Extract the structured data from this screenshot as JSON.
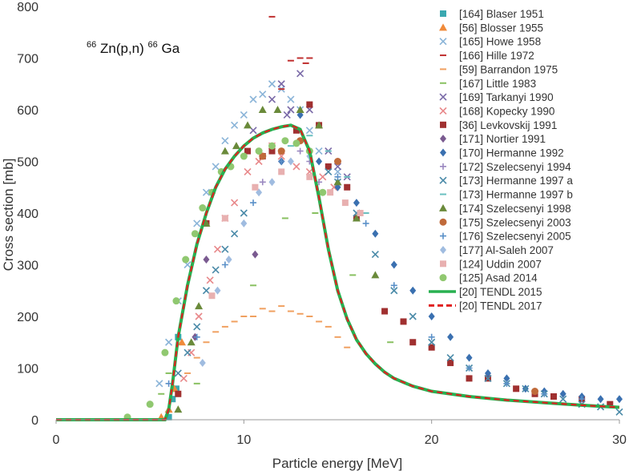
{
  "chart_data": {
    "type": "scatter",
    "title": "",
    "annotation": {
      "prefix_mass": "66",
      "target": "Zn(p,n)",
      "product_mass": "66",
      "product": "Ga"
    },
    "xlabel": "Particle energy [MeV]",
    "ylabel": "Cross section [mb]",
    "xlim": [
      0,
      30
    ],
    "ylim": [
      0,
      800
    ],
    "xticks": [
      0,
      10,
      20,
      30
    ],
    "yticks": [
      0,
      100,
      200,
      300,
      400,
      500,
      600,
      700,
      800
    ],
    "grid": false,
    "legend_position": "top-right",
    "series": [
      {
        "name": "[164] Blaser 1951",
        "marker": "square",
        "color": "#3aa8b0",
        "x": [
          6.0,
          6.2,
          6.5,
          6.4
        ],
        "y": [
          5,
          40,
          160,
          60
        ]
      },
      {
        "name": "[56] Blosser 1955",
        "marker": "triangle",
        "color": "#f08a3a",
        "x": [
          5.6,
          6.0,
          6.3,
          6.7
        ],
        "y": [
          5,
          20,
          60,
          150
        ]
      },
      {
        "name": "[165] Howe 1958",
        "marker": "x",
        "color": "#8ab4d8",
        "x": [
          5.5,
          6.0,
          6.5,
          7.0,
          7.5,
          8.0,
          8.5,
          9.0,
          9.5,
          10.0,
          10.5,
          11.0,
          11.5,
          12.0,
          12.5,
          13.0,
          13.5,
          14.0,
          15.0
        ],
        "y": [
          70,
          150,
          230,
          300,
          380,
          440,
          490,
          540,
          570,
          590,
          620,
          630,
          650,
          640,
          620,
          600,
          560,
          520,
          480
        ]
      },
      {
        "name": "[166] Hille 1972",
        "marker": "dash",
        "color": "#c03030",
        "x": [
          11.5,
          12.0,
          12.5,
          13.0,
          13.3,
          13.5
        ],
        "y": [
          780,
          640,
          695,
          700,
          690,
          700
        ]
      },
      {
        "name": "[59] Barrandon 1975",
        "marker": "dash",
        "color": "#f0a060",
        "x": [
          6.5,
          7.0,
          7.5,
          8.0,
          8.5,
          9.0,
          9.5,
          10.0,
          10.5,
          11.0,
          11.5,
          12.0,
          12.5,
          13.0,
          13.5,
          14.0,
          14.5,
          15.0,
          15.5
        ],
        "y": [
          50,
          90,
          120,
          150,
          170,
          180,
          190,
          200,
          200,
          215,
          210,
          220,
          210,
          205,
          200,
          190,
          180,
          160,
          140
        ]
      },
      {
        "name": "[167] Little 1983",
        "marker": "dash",
        "color": "#88c060",
        "x": [
          5.6,
          6.0,
          7.5,
          10.5,
          12.2,
          13.8,
          15.8,
          17.8
        ],
        "y": [
          50,
          90,
          70,
          260,
          390,
          400,
          280,
          150
        ]
      },
      {
        "name": "[169] Tarkanyi 1990",
        "marker": "x",
        "color": "#7a6aa8",
        "x": [
          10.5,
          11.5,
          12.0,
          12.3,
          12.5,
          13.0,
          13.5,
          14.5,
          15.0,
          15.5
        ],
        "y": [
          560,
          620,
          650,
          590,
          600,
          670,
          600,
          520,
          490,
          470
        ]
      },
      {
        "name": "[168] Kopecky 1990",
        "marker": "x",
        "color": "#e8888a",
        "x": [
          6.8,
          7.2,
          7.6,
          8.2,
          8.6,
          9.0,
          9.5,
          10.2,
          10.8,
          11.5,
          12.0,
          12.8,
          13.5,
          14.2,
          14.8
        ],
        "y": [
          80,
          130,
          200,
          270,
          330,
          390,
          420,
          480,
          500,
          530,
          510,
          490,
          480,
          470,
          450
        ]
      },
      {
        "name": "[36] Levkovskij 1991",
        "marker": "square",
        "color": "#a03030",
        "x": [
          6.5,
          8.0,
          10.2,
          11.0,
          11.5,
          12.8,
          13.5,
          14.0,
          14.5,
          15.5,
          16.0,
          17.5,
          18.5,
          19.0,
          20.0,
          21.0,
          22.0,
          23.0,
          24.5,
          25.5,
          26.5,
          28.0,
          29.5
        ],
        "y": [
          50,
          380,
          520,
          510,
          520,
          560,
          610,
          570,
          490,
          450,
          390,
          210,
          190,
          150,
          140,
          110,
          80,
          80,
          60,
          50,
          45,
          40,
          30
        ]
      },
      {
        "name": "[171] Nortier 1991",
        "marker": "diamond",
        "color": "#7a5a90",
        "x": [
          7.4,
          8.0,
          10.6
        ],
        "y": [
          160,
          310,
          320
        ]
      },
      {
        "name": "[170] Hermanne 1992",
        "marker": "diamond",
        "color": "#3a70b0",
        "x": [
          12.0,
          13.0,
          14.0,
          15.0,
          16.0,
          17.0,
          18.0,
          19.0,
          20.0,
          21.0,
          22.0,
          23.0,
          24.0,
          25.0,
          26.0,
          27.0,
          28.0,
          29.0,
          30.0
        ],
        "y": [
          500,
          590,
          500,
          450,
          420,
          360,
          300,
          250,
          200,
          160,
          120,
          90,
          80,
          60,
          55,
          50,
          45,
          40,
          40
        ]
      },
      {
        "name": "[172] Szelecsenyi 1994",
        "marker": "plus",
        "color": "#9a88c0",
        "x": [
          11.0,
          12.0,
          13.0,
          13.5,
          14.0
        ],
        "y": [
          460,
          500,
          520,
          500,
          460
        ]
      },
      {
        "name": "[173] Hermanne 1997 a",
        "marker": "x",
        "color": "#4a8aa8",
        "x": [
          6.5,
          7.0,
          7.5,
          8.0,
          8.5,
          9.0,
          9.5,
          10.0,
          14.5,
          15.0,
          16.0,
          17.0,
          18.0,
          19.0,
          20.0,
          21.0,
          22.0,
          23.0,
          24.0,
          25.0,
          26.0,
          27.0,
          28.0,
          29.0,
          30.0
        ],
        "y": [
          90,
          130,
          180,
          250,
          290,
          330,
          360,
          400,
          480,
          460,
          400,
          320,
          250,
          200,
          150,
          120,
          100,
          80,
          70,
          60,
          50,
          40,
          30,
          25,
          15
        ]
      },
      {
        "name": "[173] Hermanne 1997 b",
        "marker": "dash",
        "color": "#6ac0c0",
        "x": [
          12.5,
          13.5,
          14.5,
          15.5,
          16.5
        ],
        "y": [
          530,
          550,
          520,
          470,
          400
        ]
      },
      {
        "name": "[174] Szelecsenyi 1998",
        "marker": "triangle",
        "color": "#6a8a3a",
        "x": [
          6.5,
          7.2,
          7.6,
          8.0,
          9.0,
          9.6,
          10.2,
          11.0,
          11.8,
          13.0,
          14.0,
          15.0,
          16.0,
          17.0
        ],
        "y": [
          20,
          150,
          220,
          380,
          520,
          530,
          570,
          600,
          600,
          600,
          570,
          460,
          390,
          280
        ]
      },
      {
        "name": "[175] Szelecsenyi 2003",
        "marker": "circle",
        "color": "#c06a3a",
        "x": [
          11.0,
          12.0,
          13.0,
          15.0,
          25.5
        ],
        "y": [
          510,
          520,
          540,
          500,
          55
        ]
      },
      {
        "name": "[176] Szelecsenyi 2005",
        "marker": "plus",
        "color": "#5a90c8",
        "x": [
          5.0,
          6.0,
          7.5,
          9.0,
          10.5,
          12.0,
          13.5,
          15.0,
          16.5,
          18.0,
          20.0,
          22.0,
          24.0,
          26.0,
          28.0
        ],
        "y": [
          30,
          70,
          160,
          300,
          420,
          500,
          520,
          470,
          380,
          260,
          160,
          100,
          70,
          50,
          40
        ]
      },
      {
        "name": "[177] Al-Saleh 2007",
        "marker": "diamond",
        "color": "#a0bce0",
        "x": [
          7.8,
          8.6,
          9.2,
          10.0,
          10.8,
          11.5,
          12.5,
          13.5
        ],
        "y": [
          110,
          250,
          310,
          380,
          440,
          460,
          500,
          510
        ]
      },
      {
        "name": "[124] Uddin 2007",
        "marker": "square",
        "color": "#e8b0b0",
        "x": [
          8.3,
          9.0,
          10.6,
          12.0,
          13.5,
          14.6,
          15.4,
          16.2
        ],
        "y": [
          240,
          390,
          450,
          480,
          470,
          440,
          420,
          400
        ]
      },
      {
        "name": "[125] Asad 2014",
        "marker": "circle",
        "color": "#90c870",
        "x": [
          3.8,
          5.0,
          5.8,
          6.4,
          6.9,
          7.4,
          7.8,
          8.3,
          8.8,
          9.3,
          10.0,
          10.8,
          11.5,
          12.2,
          12.8,
          13.5,
          14.2
        ],
        "y": [
          5,
          30,
          130,
          230,
          310,
          360,
          410,
          440,
          480,
          490,
          510,
          520,
          530,
          540,
          535,
          520,
          440
        ]
      },
      {
        "name": "[20] TENDL 2015",
        "marker": "line",
        "color": "#28b050",
        "style": "solid",
        "x": [
          0,
          5.8,
          6.0,
          6.2,
          6.5,
          7.0,
          7.5,
          8.0,
          8.5,
          9.0,
          9.5,
          10.0,
          10.5,
          11.0,
          11.5,
          12.0,
          12.5,
          13.0,
          13.5,
          14.0,
          14.5,
          15.0,
          15.5,
          16.0,
          16.5,
          17.0,
          17.5,
          18.0,
          19.0,
          20.0,
          22.0,
          24.0,
          26.0,
          28.0,
          30.0
        ],
        "y": [
          0,
          0,
          20,
          70,
          160,
          260,
          340,
          400,
          450,
          485,
          510,
          530,
          545,
          555,
          562,
          567,
          570,
          562,
          520,
          430,
          330,
          250,
          195,
          155,
          128,
          108,
          92,
          80,
          65,
          55,
          45,
          38,
          33,
          28,
          24
        ]
      },
      {
        "name": "[20] TENDL 2017",
        "marker": "line",
        "color": "#e02020",
        "style": "dashed",
        "x": [
          0,
          5.8,
          6.0,
          6.2,
          6.5,
          7.0,
          7.5,
          8.0,
          8.5,
          9.0,
          9.5,
          10.0,
          10.5,
          11.0,
          11.5,
          12.0,
          12.5,
          13.0,
          13.5,
          14.0,
          14.5,
          15.0,
          15.5,
          16.0,
          16.5,
          17.0,
          17.5,
          18.0,
          19.0,
          20.0,
          22.0,
          24.0,
          26.0,
          28.0,
          30.0
        ],
        "y": [
          0,
          0,
          20,
          70,
          160,
          260,
          340,
          400,
          450,
          485,
          510,
          530,
          545,
          555,
          562,
          567,
          570,
          562,
          520,
          430,
          330,
          250,
          195,
          155,
          128,
          108,
          92,
          80,
          65,
          55,
          45,
          38,
          33,
          28,
          24
        ]
      }
    ]
  }
}
